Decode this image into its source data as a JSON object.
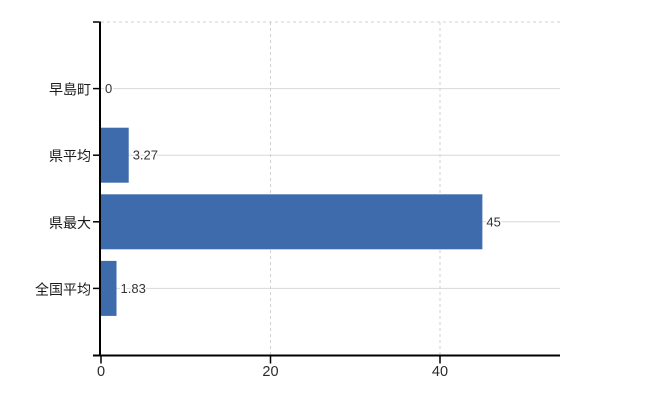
{
  "chart_style": {
    "background": "#ffffff",
    "bar_color": "#3d6bab",
    "axis_color": "#000000",
    "grid_color_h": "#d8d8d8",
    "grid_color_v": "#d0d0d0",
    "category_label_color": "#1a1a1a",
    "value_label_color": "#333333",
    "tick_label_color": "#2b2b2b"
  },
  "chart_data": {
    "type": "bar",
    "orientation": "horizontal",
    "title": "",
    "xlabel": "",
    "ylabel": "",
    "categories": [
      "早島町",
      "県平均",
      "県最大",
      "全国平均"
    ],
    "values": [
      0,
      3.27,
      45,
      1.83
    ],
    "value_labels": [
      "0",
      "3.27",
      "45",
      "1.83"
    ],
    "x_ticks": [
      0,
      20,
      40
    ],
    "x_tick_labels": [
      "0",
      "20",
      "40"
    ],
    "xlim": [
      0,
      54.2
    ],
    "grid": true,
    "legend": false
  }
}
